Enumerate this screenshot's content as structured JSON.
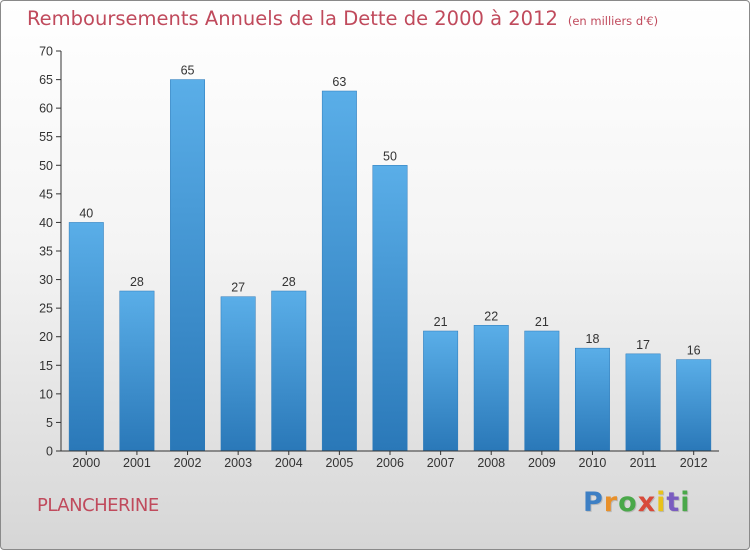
{
  "chart_data": {
    "type": "bar",
    "title": "Remboursements Annuels de la Dette de 2000 à 2012",
    "subtitle": "(en milliers d'€)",
    "categories": [
      "2000",
      "2001",
      "2002",
      "2003",
      "2004",
      "2005",
      "2006",
      "2007",
      "2008",
      "2009",
      "2010",
      "2011",
      "2012"
    ],
    "values": [
      40,
      28,
      65,
      27,
      28,
      63,
      50,
      21,
      22,
      21,
      18,
      17,
      16
    ],
    "ylim": [
      0,
      70
    ],
    "yticks": [
      0,
      5,
      10,
      15,
      20,
      25,
      30,
      35,
      40,
      45,
      50,
      55,
      60,
      65,
      70
    ],
    "grid": false,
    "bar_color": "#3d8fd0",
    "title_color": "#c04a5c"
  },
  "footer": {
    "commune": "PLANCHERINE",
    "brand_letters": [
      "P",
      "r",
      "o",
      "x",
      "i",
      "t",
      "i"
    ],
    "brand_colors": [
      "#3d7fc4",
      "#e8902a",
      "#4aa84a",
      "#d84a3a",
      "#e8c21a",
      "#7a5cc0",
      "#4aa84a"
    ]
  }
}
